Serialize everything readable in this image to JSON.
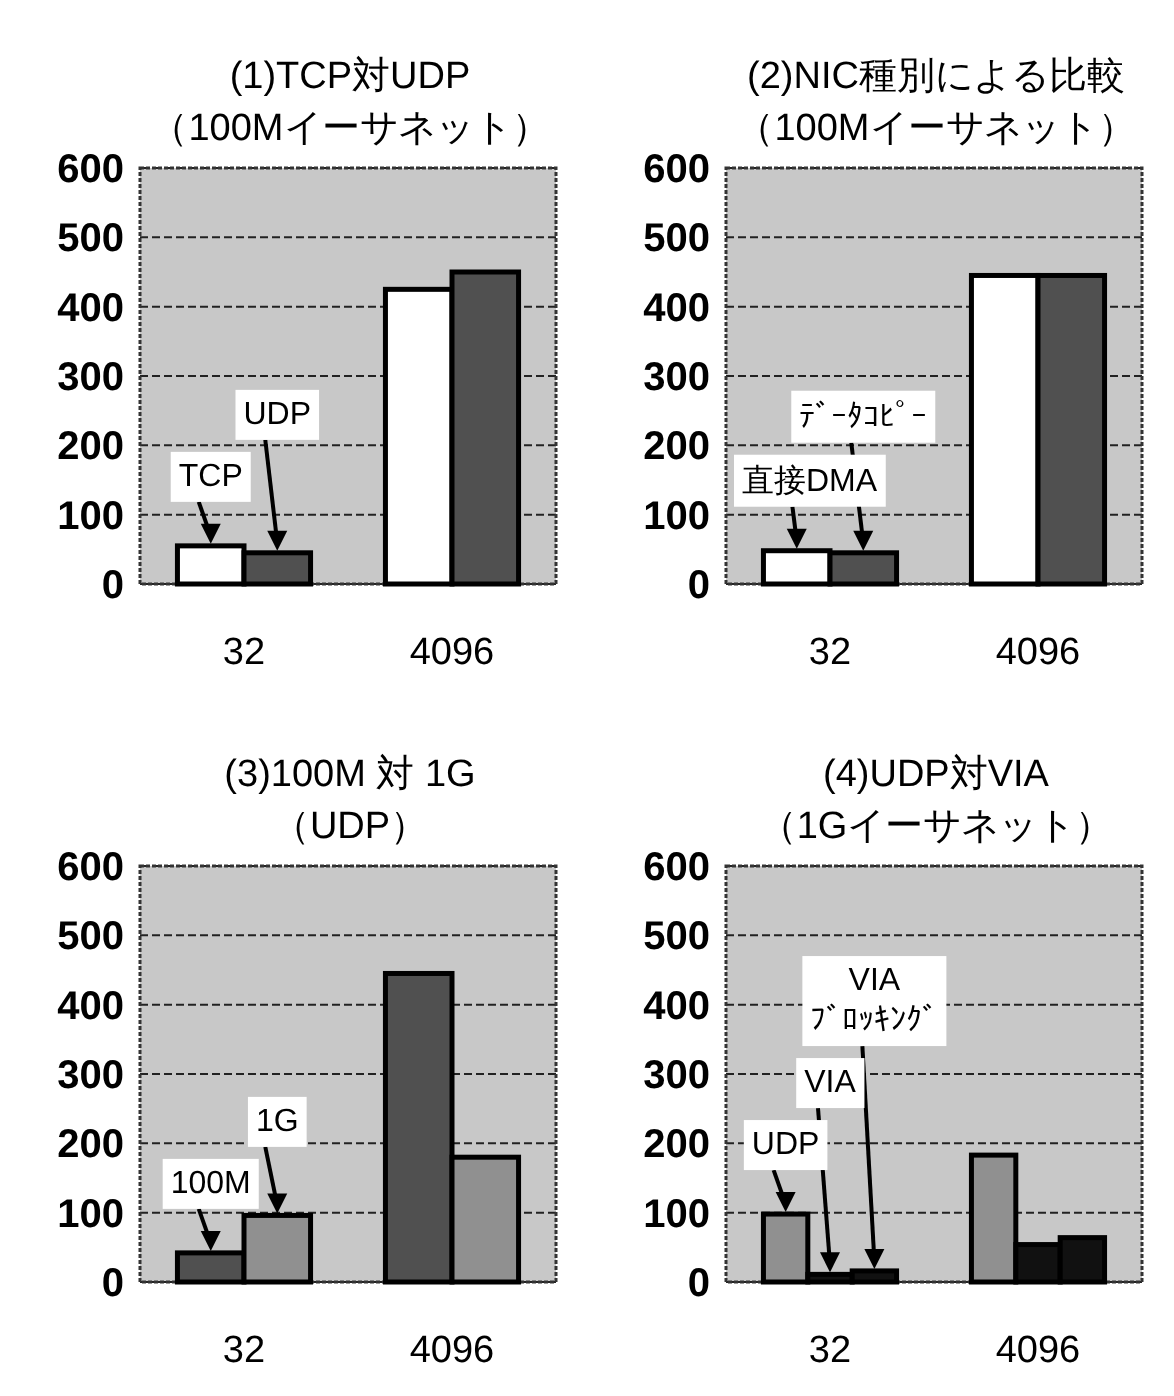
{
  "chart_data": [
    {
      "type": "bar",
      "title": "(1)TCP対UDP",
      "subtitle": "（100Mイーサネット）",
      "categories": [
        "32",
        "4096"
      ],
      "ylim": [
        0,
        600
      ],
      "yticks": [
        0,
        100,
        200,
        300,
        400,
        500,
        600
      ],
      "grid": "y",
      "series": [
        {
          "name": "TCP",
          "color": "#ffffff",
          "values": [
            55,
            425
          ]
        },
        {
          "name": "UDP",
          "color": "#505050",
          "values": [
            45,
            450
          ]
        }
      ]
    },
    {
      "type": "bar",
      "title": "(2)NIC種別による比較",
      "subtitle": "（100Mイーサネット）",
      "categories": [
        "32",
        "4096"
      ],
      "ylim": [
        0,
        600
      ],
      "yticks": [
        0,
        100,
        200,
        300,
        400,
        500,
        600
      ],
      "grid": "y",
      "series": [
        {
          "name": "直接DMA",
          "color": "#ffffff",
          "values": [
            48,
            445
          ]
        },
        {
          "name": "ﾃﾞｰﾀｺﾋﾟｰ",
          "color": "#505050",
          "values": [
            45,
            445
          ]
        }
      ]
    },
    {
      "type": "bar",
      "title": "(3)100M 対 1G",
      "subtitle": "（UDP）",
      "categories": [
        "32",
        "4096"
      ],
      "ylim": [
        0,
        600
      ],
      "yticks": [
        0,
        100,
        200,
        300,
        400,
        500,
        600
      ],
      "grid": "y",
      "series": [
        {
          "name": "100M",
          "color": "#505050",
          "values": [
            42,
            445
          ]
        },
        {
          "name": "1G",
          "color": "#909090",
          "values": [
            96,
            180
          ]
        }
      ]
    },
    {
      "type": "bar",
      "title": "(4)UDP対VIA",
      "subtitle": "（1Gイーサネット）",
      "categories": [
        "32",
        "4096"
      ],
      "ylim": [
        0,
        600
      ],
      "yticks": [
        0,
        100,
        200,
        300,
        400,
        500,
        600
      ],
      "grid": "y",
      "series": [
        {
          "name": "UDP",
          "color": "#909090",
          "values": [
            98,
            183
          ]
        },
        {
          "name": "VIA",
          "color": "#111111",
          "values": [
            11,
            54
          ]
        },
        {
          "name": "VIA\nﾌﾞﾛｯｷﾝｸﾞ",
          "color": "#111111",
          "values": [
            16,
            64
          ]
        }
      ]
    }
  ]
}
